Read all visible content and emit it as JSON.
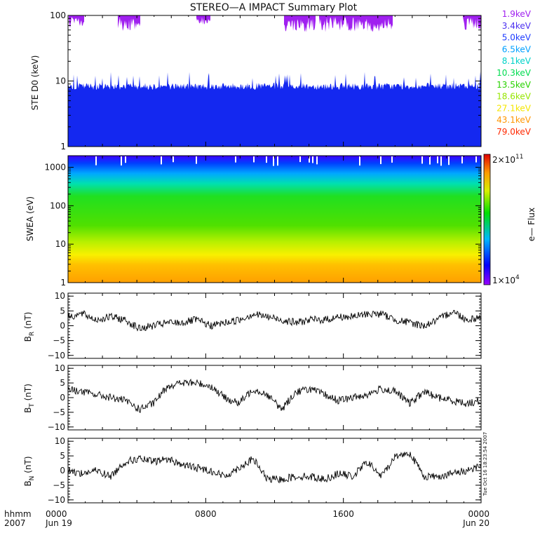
{
  "page": {
    "title": "STEREO—A IMPACT Summary Plot",
    "timestamp": "Tue Oct 16 18:23:54 2007"
  },
  "chart_data": [
    {
      "type": "line",
      "ylabel": "STE D0 (keV)",
      "yscale": "log",
      "ylim": [
        1,
        100
      ],
      "yticks": [
        "1",
        "10",
        "100"
      ],
      "legend_placement": "right",
      "series": [
        {
          "name": "1.9keV",
          "color": "#a020f0"
        },
        {
          "name": "3.4keV",
          "color": "#4b2ff0"
        },
        {
          "name": "5.0keV",
          "color": "#1e3cff"
        },
        {
          "name": "6.5keV",
          "color": "#00a0ff"
        },
        {
          "name": "8.1keV",
          "color": "#00d2c8"
        },
        {
          "name": "10.3keV",
          "color": "#00dc50"
        },
        {
          "name": "13.5keV",
          "color": "#28d200"
        },
        {
          "name": "18.6keV",
          "color": "#96e600"
        },
        {
          "name": "27.1keV",
          "color": "#f5e600"
        },
        {
          "name": "43.1keV",
          "color": "#ff9600"
        },
        {
          "name": "79.0keV",
          "color": "#ff2800"
        }
      ]
    },
    {
      "type": "heatmap",
      "ylabel": "SWEA (eV)",
      "yscale": "log",
      "ylim": [
        1,
        2000
      ],
      "yticks": [
        "1",
        "10",
        "100",
        "1000"
      ],
      "colorbar": {
        "label": "e— Flux",
        "max_label_base": "2×10",
        "max_label_exp": "11",
        "min_label_base": "1×10",
        "min_label_exp": "4"
      }
    },
    {
      "type": "line",
      "ylabel_base": "B",
      "ylabel_sub": "R",
      "ylabel_unit": " (nT)",
      "ylim": [
        -11,
        11
      ],
      "yticks": [
        "10",
        "5",
        "0",
        "−5",
        "−10"
      ],
      "y": [
        3,
        4,
        2,
        3,
        2,
        -1,
        0,
        1,
        1,
        2,
        0,
        1,
        2,
        4,
        3,
        2,
        1,
        2,
        2,
        3,
        3,
        4,
        4,
        2,
        1,
        0,
        2,
        5,
        2,
        3
      ]
    },
    {
      "type": "line",
      "ylabel_base": "B",
      "ylabel_sub": "T",
      "ylabel_unit": " (nT)",
      "ylim": [
        -11,
        11
      ],
      "yticks": [
        "10",
        "5",
        "0",
        "−5",
        "−10"
      ],
      "y": [
        3,
        2,
        1,
        0,
        -1,
        -4,
        -2,
        4,
        5,
        5,
        4,
        0,
        -2,
        3,
        1,
        -4,
        2,
        3,
        1,
        -1,
        0,
        1,
        3,
        2,
        -2,
        2,
        0,
        -1,
        -2,
        -1
      ]
    },
    {
      "type": "line",
      "ylabel_base": "B",
      "ylabel_sub": "N",
      "ylabel_unit": " (nT)",
      "ylim": [
        -11,
        11
      ],
      "yticks": [
        "10",
        "5",
        "0",
        "−5",
        "−10"
      ],
      "y": [
        0,
        -1,
        0,
        -2,
        3,
        4,
        3,
        4,
        2,
        1,
        0,
        -2,
        1,
        4,
        -3,
        -3,
        -2,
        -2,
        -3,
        -1,
        -2,
        3,
        -2,
        5,
        6,
        -2,
        -2,
        -1,
        0,
        2
      ]
    }
  ],
  "xaxis": {
    "row1_label": "hhmm",
    "row2_label": "2007",
    "ticks": [
      {
        "t": 0,
        "label": "0000",
        "sub": "Jun 19"
      },
      {
        "t": 8,
        "label": "0800",
        "sub": ""
      },
      {
        "t": 16,
        "label": "1600",
        "sub": ""
      },
      {
        "t": 24,
        "label": "0000",
        "sub": "Jun 20"
      }
    ]
  }
}
